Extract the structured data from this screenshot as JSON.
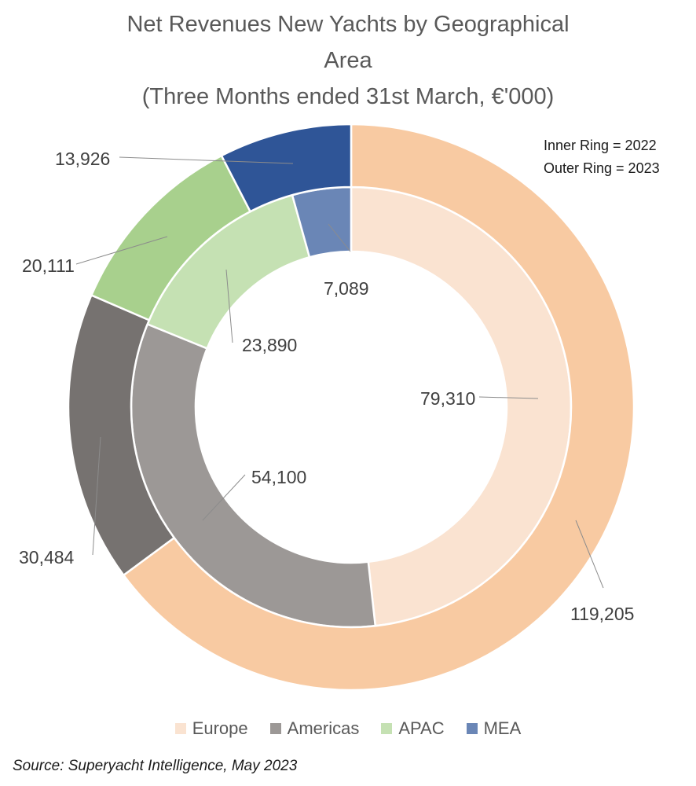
{
  "title": {
    "line1": "Net Revenues New Yachts by Geographical",
    "line2": "Area",
    "line3": "(Three Months ended 31st March, €'000)"
  },
  "ring_note": {
    "inner": "Inner Ring = 2022",
    "outer": "Outer Ring = 2023"
  },
  "source": "Source: Superyacht Intelligence, May 2023",
  "chart_data": {
    "type": "pie",
    "variant": "double-donut",
    "categories": [
      "Europe",
      "Americas",
      "APAC",
      "MEA"
    ],
    "series": [
      {
        "name": "2022",
        "ring": "inner",
        "values": [
          79310,
          54100,
          23890,
          7089
        ],
        "labels": [
          "79,310",
          "54,100",
          "23,890",
          "7,089"
        ]
      },
      {
        "name": "2023",
        "ring": "outer",
        "values": [
          119205,
          30484,
          20111,
          13926
        ],
        "labels": [
          "119,205",
          "30,484",
          "20,111",
          "13,926"
        ]
      }
    ],
    "colors": {
      "inner": [
        "#fae3d1",
        "#9c9896",
        "#c5e1b3",
        "#6a86b6"
      ],
      "outer": [
        "#f8caa2",
        "#767270",
        "#a8d08d",
        "#2f5597"
      ]
    },
    "legend": {
      "placement": "bottom",
      "items": [
        {
          "label": "Europe",
          "color": "#fae3d1"
        },
        {
          "label": "Americas",
          "color": "#9c9896"
        },
        {
          "label": "APAC",
          "color": "#c5e1b3"
        },
        {
          "label": "MEA",
          "color": "#6a86b6"
        }
      ]
    }
  }
}
